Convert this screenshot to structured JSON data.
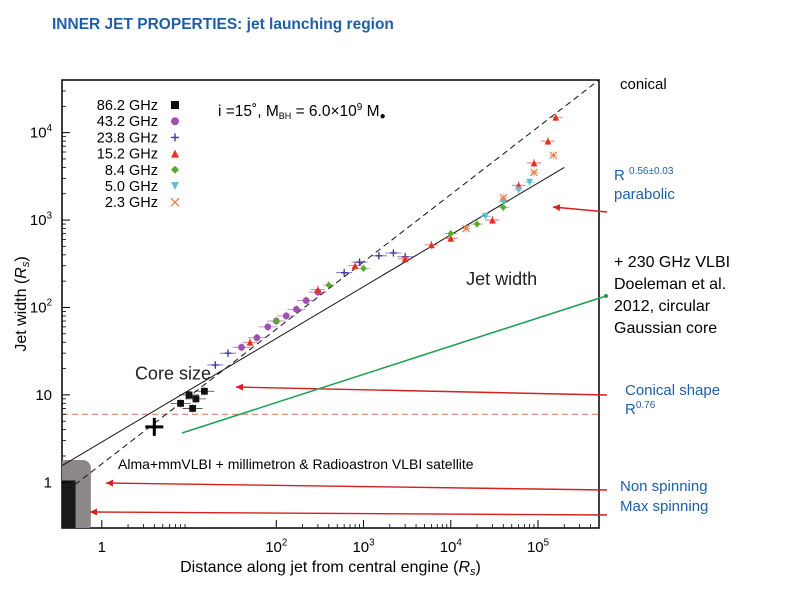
{
  "slide_title": "INNER JET PROPERTIES: jet launching region",
  "colors": {
    "title_blue": "#1f5fa8",
    "arrow_red": "#d42020",
    "arrow_green": "#1aa050",
    "band_gray": "#8c8888",
    "band_black": "#1a1a1a",
    "dashed_orange": "#e07050"
  },
  "chart_data": {
    "type": "scatter",
    "title": "",
    "xlabel": "Distance along jet from central engine",
    "xlabel_unit": "R",
    "xlabel_unit_sub": "s",
    "ylabel": "Jet width",
    "ylabel_unit": "R",
    "ylabel_unit_sub": "s",
    "xscale": "log",
    "yscale": "log",
    "xlim": [
      0.35,
      500000
    ],
    "ylim": [
      0.3,
      40000
    ],
    "x_ticks": [
      {
        "value": 1,
        "label": "1"
      },
      {
        "value": 100,
        "label": "10",
        "sup": "2"
      },
      {
        "value": 1000,
        "label": "10",
        "sup": "3"
      },
      {
        "value": 10000,
        "label": "10",
        "sup": "4"
      },
      {
        "value": 100000,
        "label": "10",
        "sup": "5"
      }
    ],
    "y_ticks": [
      {
        "value": 1,
        "label": "1"
      },
      {
        "value": 10,
        "label": "10"
      },
      {
        "value": 100,
        "label": "10",
        "sup": "2"
      },
      {
        "value": 1000,
        "label": "10",
        "sup": "3"
      },
      {
        "value": 10000,
        "label": "10",
        "sup": "4"
      }
    ],
    "inset_text": {
      "i": "i =15˚,",
      "mass": "M",
      "mass_sub": "BH",
      "mass_value": " = 6.0×10",
      "mass_exp": "9",
      "mass_unit": " M",
      "sun": "●"
    },
    "legend_position": "top-left",
    "legend": [
      {
        "label": "86.2 GHz",
        "color": "#111111",
        "marker": "square"
      },
      {
        "label": "43.2 GHz",
        "color": "#a050b0",
        "marker": "circle"
      },
      {
        "label": "23.8 GHz",
        "color": "#3a3aa0",
        "marker": "plus"
      },
      {
        "label": "15.2 GHz",
        "color": "#e83020",
        "marker": "triangle-up"
      },
      {
        "label": "8.4 GHz",
        "color": "#5aa830",
        "marker": "diamond"
      },
      {
        "label": "5.0 GHz",
        "color": "#60c0d0",
        "marker": "triangle-down"
      },
      {
        "label": "2.3 GHz",
        "color": "#e8804a",
        "marker": "cross"
      }
    ],
    "series": [
      {
        "name": "86.2 GHz",
        "points": [
          [
            8,
            8
          ],
          [
            10,
            10
          ],
          [
            12,
            9
          ],
          [
            15,
            11
          ],
          [
            11,
            7
          ]
        ]
      },
      {
        "name": "43.2 GHz",
        "points": [
          [
            40,
            35
          ],
          [
            60,
            45
          ],
          [
            80,
            60
          ],
          [
            100,
            70
          ],
          [
            130,
            80
          ],
          [
            170,
            95
          ],
          [
            220,
            120
          ],
          [
            300,
            150
          ]
        ]
      },
      {
        "name": "23.8 GHz",
        "points": [
          [
            20,
            22
          ],
          [
            28,
            30
          ],
          [
            600,
            250
          ],
          [
            900,
            330
          ],
          [
            1500,
            390
          ],
          [
            2200,
            420
          ],
          [
            3000,
            380
          ]
        ]
      },
      {
        "name": "15.2 GHz",
        "points": [
          [
            50,
            40
          ],
          [
            300,
            160
          ],
          [
            800,
            300
          ],
          [
            3000,
            360
          ],
          [
            6000,
            520
          ],
          [
            10000,
            620
          ],
          [
            30000,
            1000
          ],
          [
            60000,
            2500
          ],
          [
            90000,
            4500
          ],
          [
            130000,
            8000
          ],
          [
            160000,
            15000
          ]
        ]
      },
      {
        "name": "8.4 GHz",
        "points": [
          [
            100,
            70
          ],
          [
            400,
            180
          ],
          [
            1000,
            280
          ],
          [
            10000,
            700
          ],
          [
            20000,
            900
          ],
          [
            40000,
            1400
          ]
        ]
      },
      {
        "name": "5.0 GHz",
        "points": [
          [
            25000,
            1100
          ],
          [
            40000,
            1600
          ],
          [
            60000,
            2200
          ],
          [
            80000,
            2700
          ]
        ]
      },
      {
        "name": "2.3 GHz",
        "points": [
          [
            15000,
            800
          ],
          [
            40000,
            1800
          ],
          [
            90000,
            3500
          ],
          [
            150000,
            5500
          ]
        ]
      }
    ],
    "lines": [
      {
        "name": "conical dashed",
        "style": "dashed",
        "points": [
          [
            0.4,
            0.8
          ],
          [
            500000,
            40000
          ]
        ]
      },
      {
        "name": "parabolic fit",
        "style": "solid",
        "points": [
          [
            0.35,
            1.55
          ],
          [
            200000,
            4000
          ]
        ]
      },
      {
        "name": "horizontal limit",
        "style": "dashed-orange",
        "y": 6
      }
    ],
    "annotations": [
      {
        "text": "Core size",
        "x": 2.4,
        "y": 15
      },
      {
        "text": "Jet width",
        "x": 15000,
        "y": 180
      }
    ],
    "extra_marker": {
      "label": "230 GHz VLBI core",
      "x": 4,
      "y": 4.3
    }
  },
  "annotations": {
    "conical": "conical",
    "r_parabolic": "R",
    "r_parabolic_exp": "0.56±0.03",
    "parabolic": "parabolic",
    "vlbi_230_line1": "+ 230 GHz  VLBI",
    "vlbi_230_line2": "Doeleman et al.",
    "vlbi_230_line3": "2012, circular",
    "vlbi_230_line4": "Gaussian core",
    "conical_shape": "Conical shape",
    "r_conical": "R",
    "r_conical_exp": "0.76",
    "alma": "Alma+mmVLBI + millimetron & Radioastron VLBI satellite",
    "non_spinning": "Non spinning",
    "max_spinning": "Max spinning"
  }
}
